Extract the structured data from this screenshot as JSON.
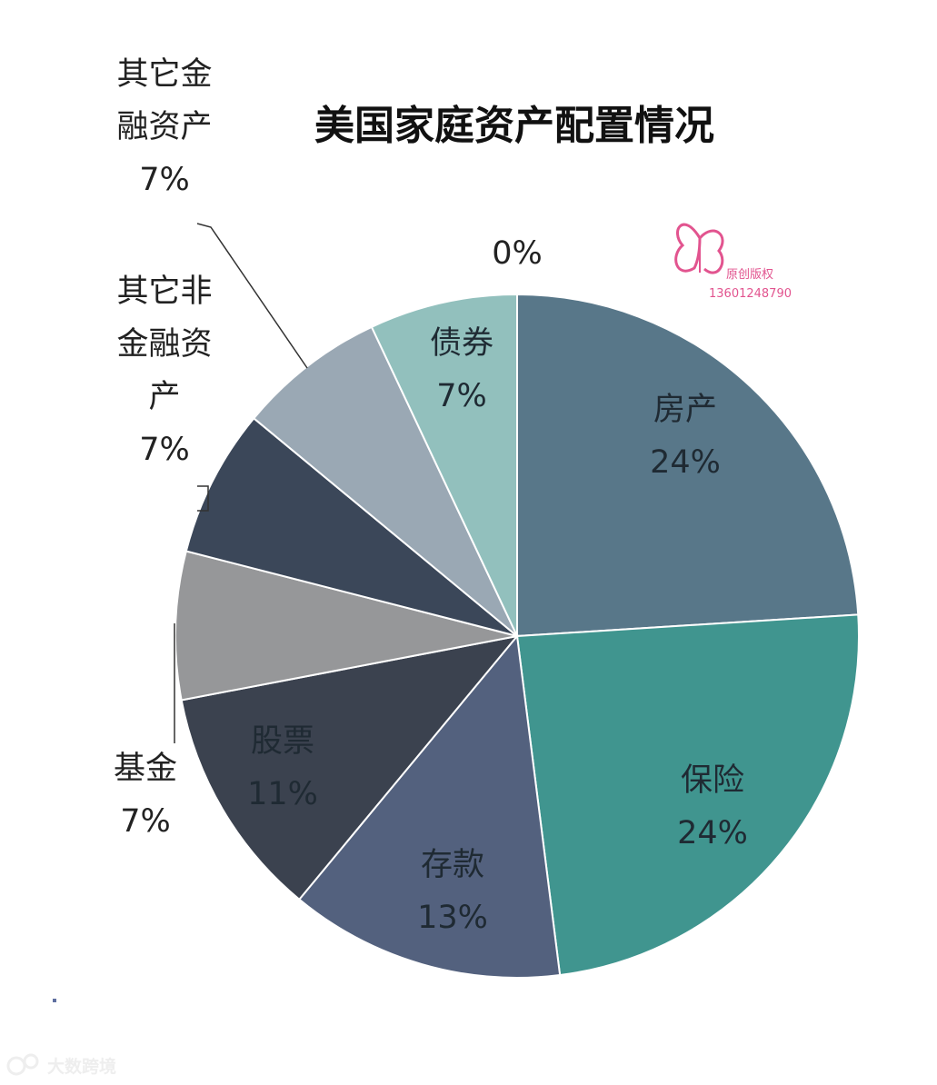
{
  "chart_data": {
    "type": "pie",
    "title": "美国家庭资产配置情况",
    "slices": [
      {
        "name": "房产",
        "value": 24,
        "label": "24%",
        "color": "#587789",
        "label_side": "inside",
        "name_lines": [
          "房产"
        ]
      },
      {
        "name": "保险",
        "value": 24,
        "label": "24%",
        "color": "#40958f",
        "label_side": "inside",
        "name_lines": [
          "保险"
        ]
      },
      {
        "name": "存款",
        "value": 13,
        "label": "13%",
        "color": "#53617e",
        "label_side": "inside",
        "name_lines": [
          "存款"
        ]
      },
      {
        "name": "股票",
        "value": 11,
        "label": "11%",
        "color": "#3b424f",
        "label_side": "inside",
        "name_lines": [
          "股票"
        ]
      },
      {
        "name": "基金",
        "value": 7,
        "label": "7%",
        "color": "#969799",
        "label_side": "outside",
        "name_lines": [
          "基金"
        ]
      },
      {
        "name": "其它非金融资产",
        "value": 7,
        "label": "7%",
        "color": "#3b4759",
        "label_side": "outside",
        "name_lines": [
          "其它非",
          "金融资",
          "产"
        ]
      },
      {
        "name": "其它金融资产",
        "value": 7,
        "label": "7%",
        "color": "#9aa8b4",
        "label_side": "outside",
        "name_lines": [
          "其它金",
          "融资产"
        ]
      },
      {
        "name": "债券",
        "value": 7,
        "label": "7%",
        "color": "#92c0bd",
        "label_side": "inside",
        "name_lines": [
          "债券"
        ]
      },
      {
        "name": "",
        "value": 0,
        "label": "0%",
        "color": "#cccccc",
        "label_side": "top",
        "name_lines": []
      }
    ]
  },
  "watermark": {
    "text": "原创版权",
    "phone": "13601248790",
    "color": "#e2548f"
  },
  "brand": {
    "text": "大数跨境"
  }
}
